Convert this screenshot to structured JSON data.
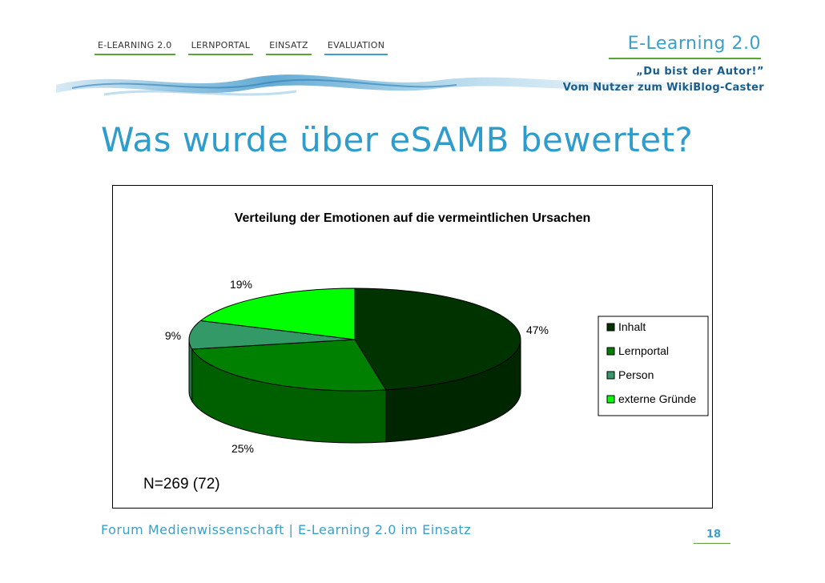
{
  "nav": {
    "items": [
      {
        "label": "E-LEARNING 2.0",
        "color": "#5aa535"
      },
      {
        "label": "LERNPORTAL",
        "color": "#5aa535"
      },
      {
        "label": "EINSATZ",
        "color": "#5aa535"
      },
      {
        "label": "EVALUATION",
        "color": "#3a9fc9"
      }
    ]
  },
  "brand": {
    "title": "E-Learning 2.0",
    "subtitle_line1": "„Du bist der Autor!”",
    "subtitle_line2": "Vom Nutzer zum WikiBlog-Caster"
  },
  "page": {
    "title": "Was wurde über eSAMB bewertet?"
  },
  "chart_data": {
    "type": "pie",
    "title": "Verteilung der Emotionen auf die vermeintlichen Ursachen",
    "categories": [
      "Inhalt",
      "Lernportal",
      "Person",
      "externe Gründe"
    ],
    "values": [
      47,
      25,
      9,
      19
    ],
    "labels": [
      "47%",
      "25%",
      "9%",
      "19%"
    ],
    "colors": [
      "#003300",
      "#008000",
      "#339966",
      "#00ff00"
    ],
    "legend_position": "right",
    "annotation": "N=269 (72)"
  },
  "footer": {
    "text": "Forum Medienwissenschaft | E-Learning 2.0 im Einsatz",
    "page_number": "18"
  }
}
